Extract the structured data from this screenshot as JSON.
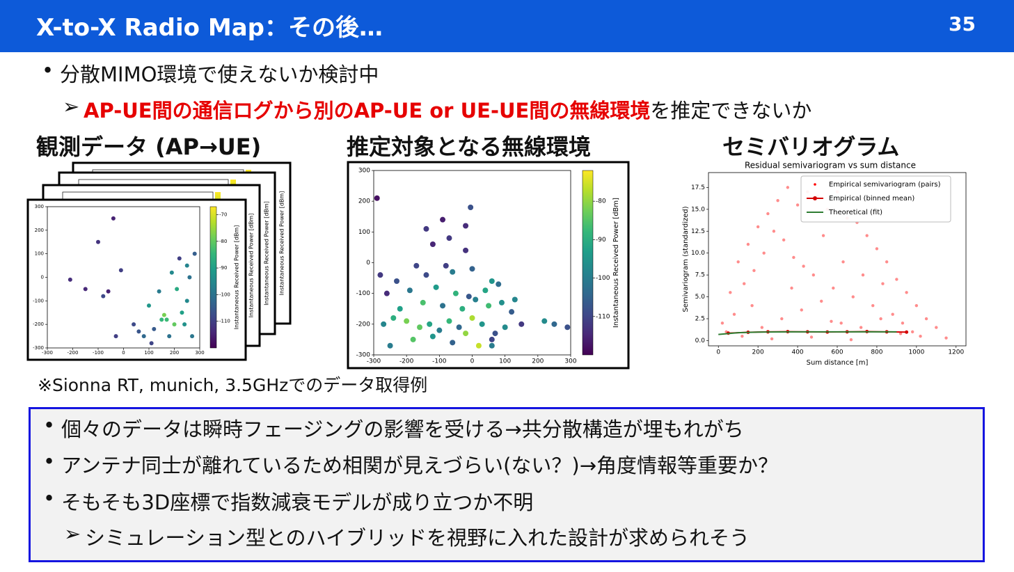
{
  "header": {
    "title": "X-to-X Radio Map：その後…",
    "page_number": 35
  },
  "bullets": {
    "main": "分散MIMO環境で使えないか検討中",
    "sub_highlight": "AP-UE間の通信ログから別のAP-UE or UE-UE間の無線環境",
    "sub_rest": "を推定できないか"
  },
  "captions": [
    "観測データ (AP→UE)",
    "推定対象となる無線環境",
    "セミバリオグラム"
  ],
  "note": "※Sionna RT, munich, 3.5GHzでのデータ取得例",
  "box": {
    "items": [
      "個々のデータは瞬時フェージングの影響を受ける→共分散構造が埋もれがち",
      "アンテナ同士が離れているため相関が見えづらい(ない？)→角度情報等重要か？",
      "そもそも3D座標で指数減衰モデルが成り立つか不明"
    ],
    "sub_item": "シミュレーション型とのハイブリッドを視野に入れた設計が求められそう"
  },
  "chart_data": [
    {
      "type": "scatter",
      "xlim": [
        -300,
        300
      ],
      "ylim": [
        -300,
        300
      ],
      "xticks": [
        -300,
        -200,
        -100,
        0,
        100,
        200,
        300
      ],
      "yticks": [
        -300,
        -200,
        -100,
        0,
        100,
        200,
        300
      ],
      "colorbar_label": "Instantaneous Received Power [dBm]",
      "clim": [
        -120,
        -67
      ],
      "cticks": [
        -70,
        -80,
        -90,
        -100,
        -110
      ],
      "x": [
        200,
        230,
        250,
        150,
        180,
        210,
        100,
        120,
        160,
        260,
        220,
        190,
        140,
        80,
        40,
        -30,
        -40,
        -100,
        -80,
        -150,
        -210,
        -60,
        -10,
        250,
        280,
        270,
        170,
        60,
        110,
        240
      ],
      "values": [
        -200,
        -150,
        -100,
        -180,
        -250,
        -50,
        -120,
        -220,
        -160,
        0,
        80,
        20,
        -60,
        -250,
        -200,
        -250,
        250,
        150,
        -80,
        -50,
        -10,
        -60,
        30,
        50,
        100,
        -250,
        -180,
        -230,
        -280,
        -200
      ],
      "color_values": [
        -80,
        -90,
        -95,
        -85,
        -100,
        -88,
        -92,
        -105,
        -78,
        -100,
        -110,
        -95,
        -98,
        -102,
        -108,
        -110,
        -115,
        -112,
        -108,
        -114,
        -113,
        -115,
        -110,
        -96,
        -104,
        -99,
        -84,
        -106,
        -109,
        -93
      ]
    },
    {
      "type": "scatter",
      "xlim": [
        -300,
        300
      ],
      "ylim": [
        -300,
        300
      ],
      "xticks": [
        -300,
        -200,
        -100,
        0,
        100,
        200,
        300
      ],
      "yticks": [
        -300,
        -200,
        -100,
        0,
        100,
        200,
        300
      ],
      "colorbar_label": "Instantaneous Received Power [dBm]",
      "clim": [
        -120,
        -72
      ],
      "cticks": [
        -80,
        -90,
        -100,
        -110
      ],
      "x": [
        -250,
        -180,
        -120,
        -60,
        -20,
        20,
        60,
        -270,
        -240,
        -200,
        -160,
        -130,
        -100,
        -70,
        -40,
        0,
        30,
        70,
        100,
        150,
        -220,
        -150,
        -90,
        -30,
        10,
        50,
        90,
        120,
        -260,
        -190,
        -110,
        -50,
        -10,
        40,
        80,
        130,
        -280,
        -140,
        -60,
        0,
        60,
        -230,
        -80,
        -20,
        -170,
        -120,
        -70,
        220,
        250,
        290,
        -90,
        -140,
        -20,
        -5,
        -290,
        60
      ],
      "values": [
        -270,
        -250,
        -240,
        -260,
        -230,
        -270,
        -250,
        -200,
        -180,
        -190,
        -210,
        -200,
        -220,
        -190,
        -210,
        -180,
        -200,
        -230,
        -210,
        -200,
        -150,
        -130,
        -140,
        -150,
        -120,
        -140,
        -130,
        -160,
        -100,
        -90,
        -80,
        -100,
        -110,
        -90,
        -70,
        -120,
        -40,
        -40,
        -30,
        -20,
        -60,
        -60,
        -10,
        40,
        -10,
        60,
        80,
        -190,
        -200,
        -210,
        140,
        110,
        120,
        180,
        210,
        -270
      ],
      "color_values": [
        -100,
        -85,
        -95,
        -105,
        -80,
        -76,
        -110,
        -98,
        -90,
        -82,
        -84,
        -92,
        -100,
        -88,
        -104,
        -78,
        -95,
        -108,
        -97,
        -112,
        -93,
        -86,
        -102,
        -90,
        -99,
        -87,
        -96,
        -106,
        -114,
        -101,
        -94,
        -89,
        -107,
        -92,
        -103,
        -98,
        -112,
        -109,
        -100,
        -105,
        -95,
        -108,
        -111,
        -113,
        -110,
        -115,
        -112,
        -97,
        -104,
        -108,
        -116,
        -112,
        -114,
        -108,
        -118,
        -100
      ]
    },
    {
      "type": "scatter",
      "title": "Residual semivariogram vs sum distance",
      "xlabel": "Sum distance [m]",
      "ylabel": "Semivariogram (standardized)",
      "xlim": [
        -50,
        1250
      ],
      "ylim": [
        -0.6,
        19.2
      ],
      "xticks": [
        0,
        200,
        400,
        600,
        800,
        1000,
        1200
      ],
      "yticks": [
        {
          "value": 0,
          "label": "0.0"
        },
        2.5,
        {
          "value": 5,
          "label": "5.0"
        },
        7.5,
        {
          "value": 10,
          "label": "10.0"
        },
        12.5,
        {
          "value": 15,
          "label": "15.0"
        },
        17.5
      ],
      "legend": "upper right",
      "series": [
        {
          "name": "Empirical semivariogram (pairs)",
          "color": "#ff0000",
          "mode": "markers",
          "x": [
            20,
            60,
            100,
            150,
            200,
            250,
            300,
            350,
            400,
            450,
            500,
            550,
            600,
            650,
            700,
            750,
            800,
            850,
            900,
            950,
            1000,
            1050,
            1100,
            1150,
            80,
            130,
            180,
            230,
            280,
            330,
            380,
            430,
            480,
            530,
            580,
            630,
            680,
            730,
            780,
            830,
            880,
            930,
            980,
            40,
            120,
            220,
            320,
            420,
            520,
            620,
            720,
            820,
            920,
            1020,
            170,
            270,
            370,
            470,
            570,
            670
          ],
          "values": [
            2.0,
            5.5,
            9.0,
            11.0,
            13.0,
            14.5,
            16.0,
            17.5,
            15.5,
            17.0,
            16.5,
            15.0,
            17.0,
            14.0,
            13.5,
            12.0,
            10.5,
            9.0,
            7.0,
            5.5,
            4.0,
            2.5,
            1.5,
            0.3,
            3.0,
            6.5,
            8.0,
            10.0,
            12.5,
            11.5,
            9.5,
            8.5,
            7.5,
            12.0,
            6.0,
            9.0,
            5.0,
            7.5,
            4.0,
            6.5,
            3.0,
            2.0,
            1.0,
            1.0,
            0.5,
            1.5,
            2.5,
            3.5,
            4.5,
            2.0,
            1.5,
            2.5,
            0.8,
            0.5,
            4.0,
            0.2,
            6.0,
            0.4,
            2.2,
            0.1
          ]
        },
        {
          "name": "Empirical (binned mean)",
          "color": "#d40000",
          "mode": "lines+markers",
          "x": [
            50,
            150,
            250,
            350,
            450,
            550,
            650,
            750,
            850,
            950
          ],
          "values": [
            0.85,
            0.95,
            1.0,
            1.02,
            1.0,
            0.98,
            1.0,
            1.03,
            1.0,
            0.97
          ]
        },
        {
          "name": "Theoretical (fit)",
          "color": "#2e7d32",
          "mode": "lines",
          "x": [
            0,
            100,
            200,
            300,
            400,
            500,
            600,
            700,
            800,
            900
          ],
          "values": [
            0.7,
            0.9,
            0.97,
            0.99,
            1.0,
            1.0,
            1.0,
            1.0,
            1.0,
            1.0
          ]
        }
      ]
    }
  ]
}
